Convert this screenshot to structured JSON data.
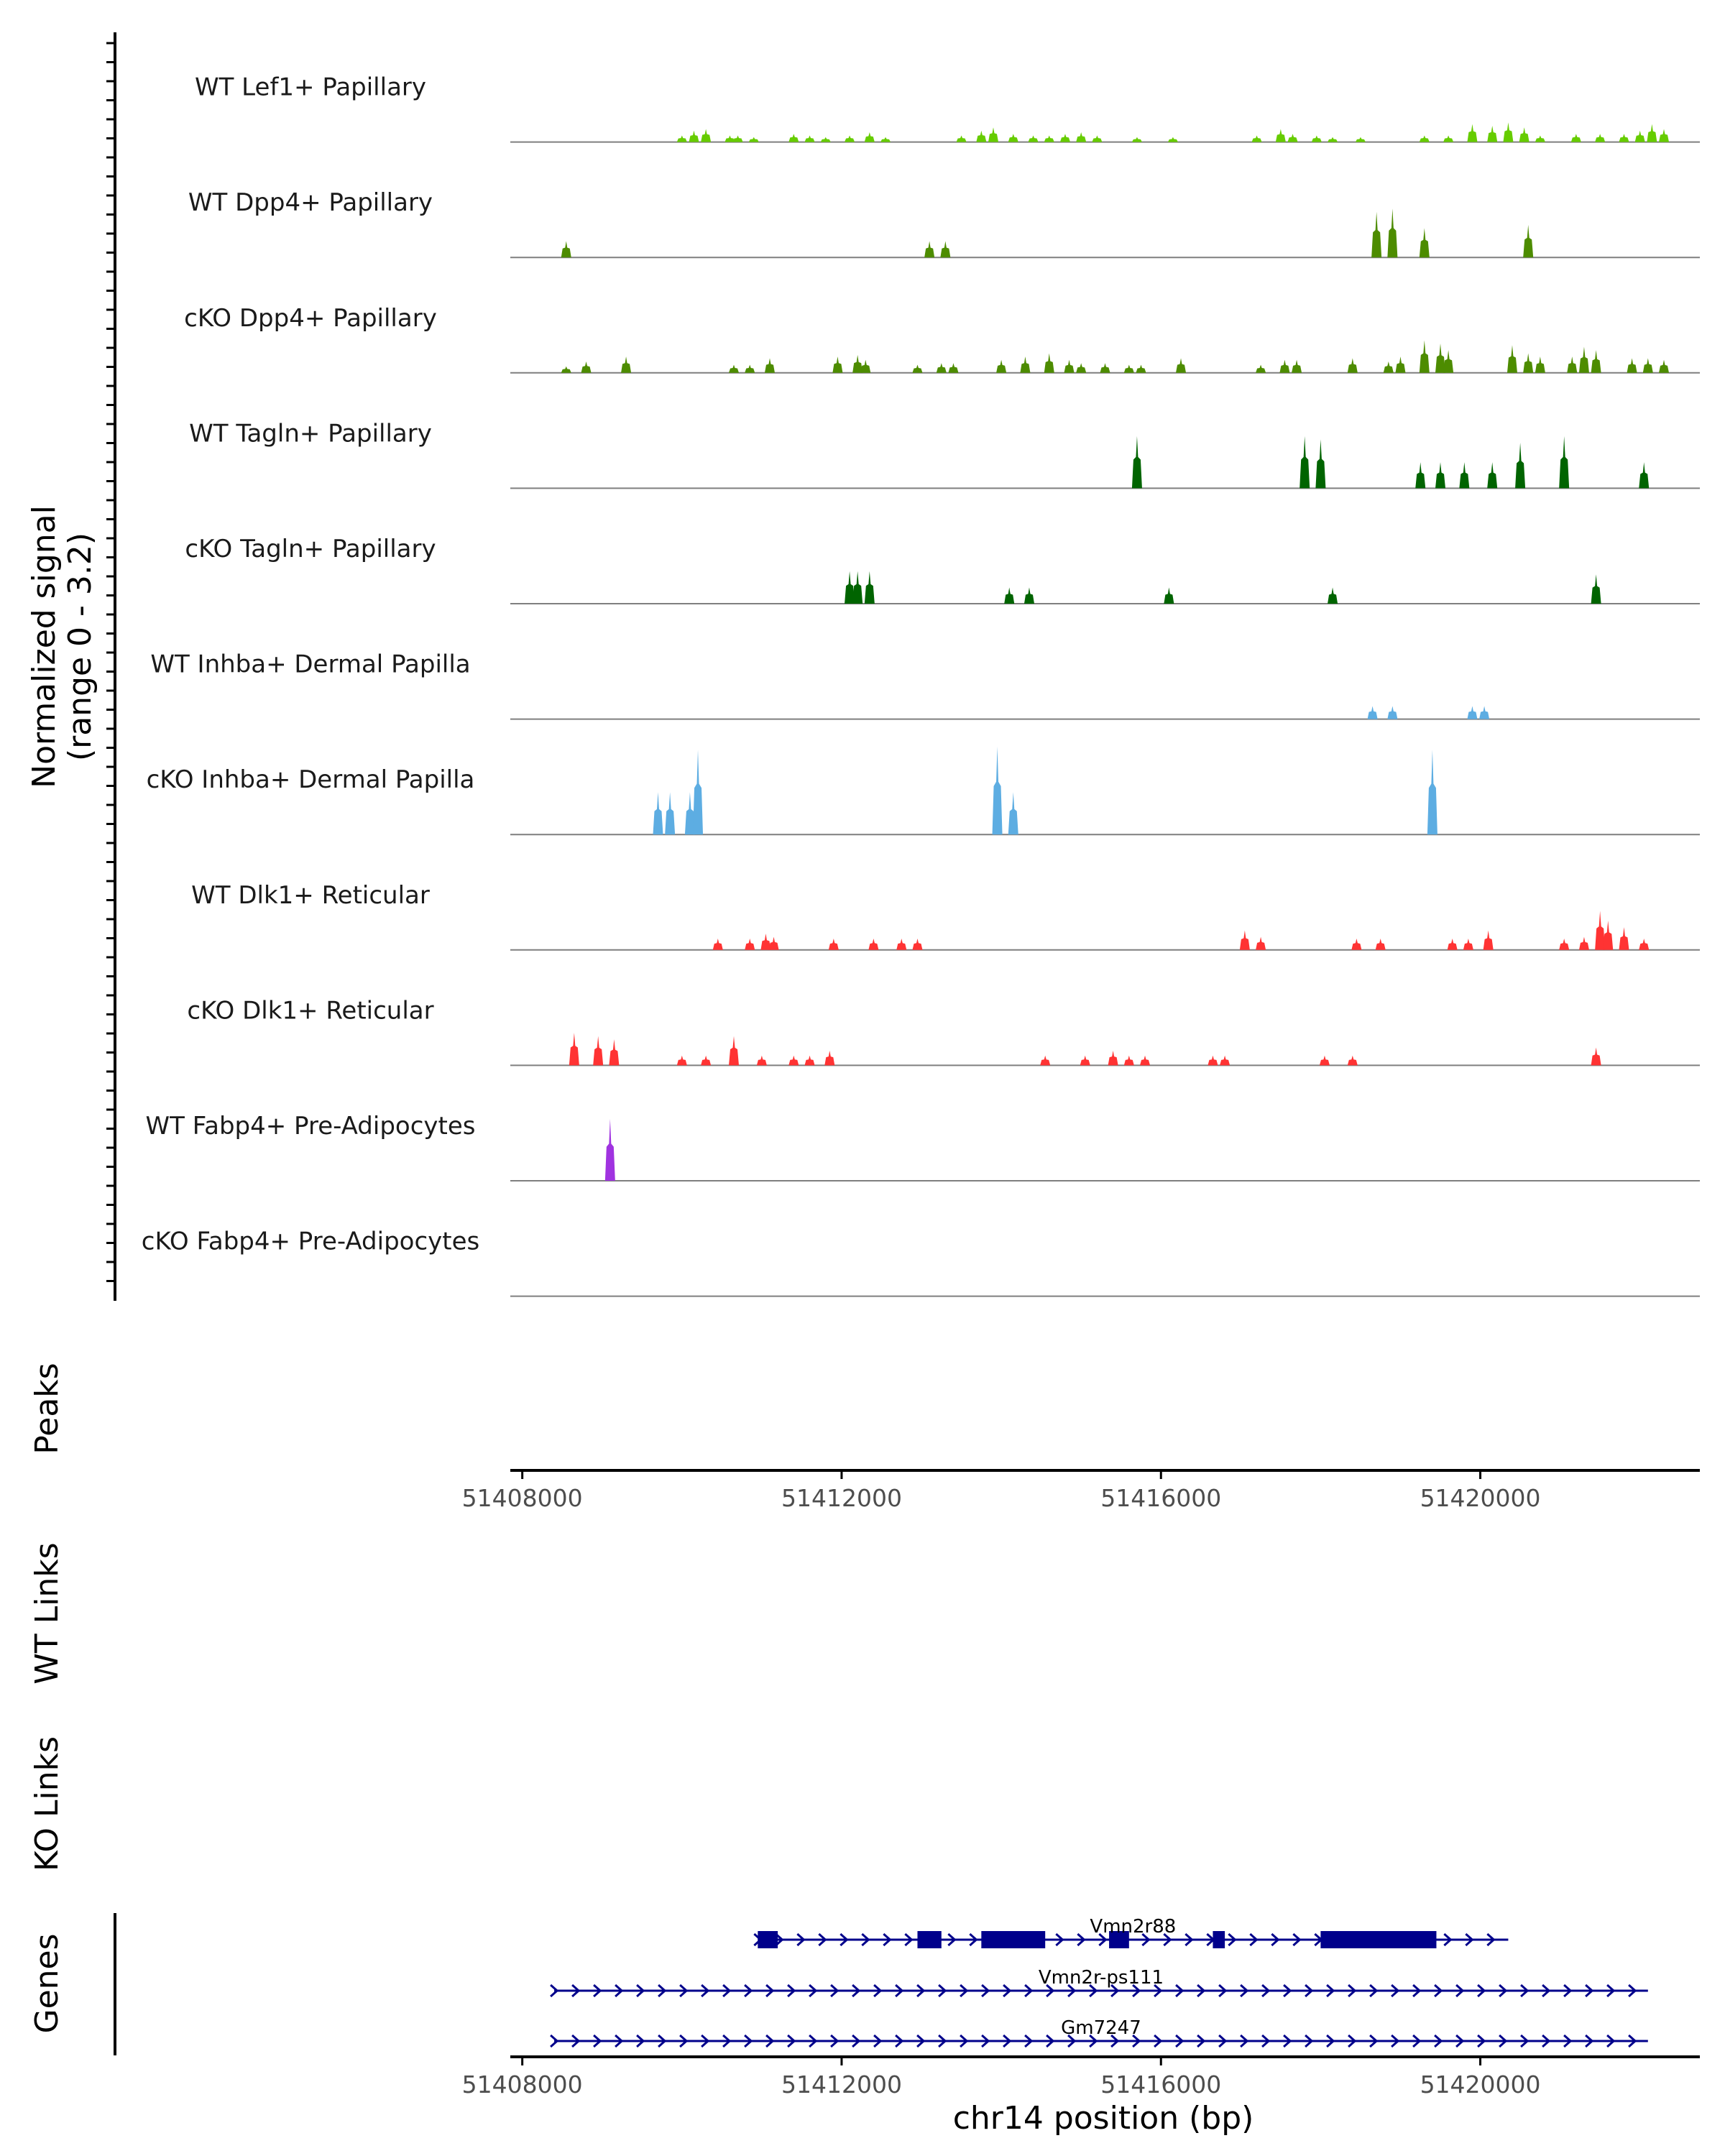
{
  "chart_data": {
    "type": "area",
    "title": "",
    "ylabel": "Normalized signal",
    "ylabel_range": "(range 0 - 3.2)",
    "ylim": [
      0,
      3.2
    ],
    "xlabel": "chr14 position (bp)",
    "xlim": [
      51407850,
      51422750
    ],
    "xticks": [
      51408000,
      51412000,
      51416000,
      51420000
    ],
    "xtick_labels": [
      "51408000",
      "51412000",
      "51416000",
      "51420000"
    ],
    "tracks": [
      {
        "name": "WT Lef1+ Papillary",
        "color": "#66CC00",
        "peaks": [
          [
            51410000,
            0.2
          ],
          [
            51410150,
            0.35
          ],
          [
            51410300,
            0.4
          ],
          [
            51410600,
            0.2
          ],
          [
            51410700,
            0.2
          ],
          [
            51410900,
            0.15
          ],
          [
            51411400,
            0.25
          ],
          [
            51411600,
            0.2
          ],
          [
            51411800,
            0.15
          ],
          [
            51412100,
            0.2
          ],
          [
            51412350,
            0.3
          ],
          [
            51412550,
            0.15
          ],
          [
            51413500,
            0.2
          ],
          [
            51413750,
            0.35
          ],
          [
            51413900,
            0.45
          ],
          [
            51414150,
            0.25
          ],
          [
            51414400,
            0.2
          ],
          [
            51414600,
            0.2
          ],
          [
            51414800,
            0.25
          ],
          [
            51415000,
            0.3
          ],
          [
            51415200,
            0.2
          ],
          [
            51415700,
            0.15
          ],
          [
            51416150,
            0.15
          ],
          [
            51417200,
            0.2
          ],
          [
            51417500,
            0.4
          ],
          [
            51417650,
            0.25
          ],
          [
            51417950,
            0.2
          ],
          [
            51418150,
            0.15
          ],
          [
            51418500,
            0.15
          ],
          [
            51419300,
            0.2
          ],
          [
            51419600,
            0.2
          ],
          [
            51419900,
            0.55
          ],
          [
            51420150,
            0.5
          ],
          [
            51420350,
            0.6
          ],
          [
            51420550,
            0.45
          ],
          [
            51420750,
            0.2
          ],
          [
            51421200,
            0.25
          ],
          [
            51421500,
            0.25
          ],
          [
            51421800,
            0.25
          ],
          [
            51422000,
            0.35
          ],
          [
            51422150,
            0.55
          ],
          [
            51422300,
            0.4
          ]
        ]
      },
      {
        "name": "WT Dpp4+ Papillary",
        "color": "#4D8C00",
        "peaks": [
          [
            51408550,
            0.5
          ],
          [
            51413100,
            0.5
          ],
          [
            51413300,
            0.5
          ],
          [
            51418700,
            1.4
          ],
          [
            51418900,
            1.5
          ],
          [
            51419300,
            0.9
          ],
          [
            51420600,
            1.0
          ]
        ]
      },
      {
        "name": "cKO Dpp4+ Papillary",
        "color": "#4D8C00",
        "peaks": [
          [
            51408550,
            0.2
          ],
          [
            51408800,
            0.35
          ],
          [
            51409300,
            0.5
          ],
          [
            51410650,
            0.25
          ],
          [
            51410850,
            0.25
          ],
          [
            51411100,
            0.45
          ],
          [
            51411950,
            0.5
          ],
          [
            51412200,
            0.55
          ],
          [
            51412300,
            0.4
          ],
          [
            51412950,
            0.25
          ],
          [
            51413250,
            0.3
          ],
          [
            51413400,
            0.3
          ],
          [
            51414000,
            0.4
          ],
          [
            51414300,
            0.5
          ],
          [
            51414600,
            0.6
          ],
          [
            51414850,
            0.4
          ],
          [
            51415000,
            0.3
          ],
          [
            51415300,
            0.3
          ],
          [
            51415600,
            0.25
          ],
          [
            51415750,
            0.25
          ],
          [
            51416250,
            0.45
          ],
          [
            51417250,
            0.25
          ],
          [
            51417550,
            0.4
          ],
          [
            51417700,
            0.4
          ],
          [
            51418400,
            0.45
          ],
          [
            51418850,
            0.35
          ],
          [
            51419000,
            0.5
          ],
          [
            51419300,
            1.0
          ],
          [
            51419500,
            0.9
          ],
          [
            51419600,
            0.7
          ],
          [
            51420400,
            0.85
          ],
          [
            51420600,
            0.6
          ],
          [
            51420750,
            0.5
          ],
          [
            51421150,
            0.5
          ],
          [
            51421300,
            0.8
          ],
          [
            51421450,
            0.7
          ],
          [
            51421900,
            0.45
          ],
          [
            51422100,
            0.45
          ],
          [
            51422300,
            0.4
          ]
        ]
      },
      {
        "name": "WT Tagln+ Papillary",
        "color": "#006400",
        "peaks": [
          [
            51415700,
            1.6
          ],
          [
            51417800,
            1.6
          ],
          [
            51418000,
            1.5
          ],
          [
            51419250,
            0.8
          ],
          [
            51419500,
            0.8
          ],
          [
            51419800,
            0.8
          ],
          [
            51420150,
            0.8
          ],
          [
            51420500,
            1.4
          ],
          [
            51421050,
            1.6
          ],
          [
            51422050,
            0.8
          ]
        ]
      },
      {
        "name": "cKO Tagln+ Papillary",
        "color": "#006400",
        "peaks": [
          [
            51412100,
            1.0
          ],
          [
            51412200,
            1.0
          ],
          [
            51412350,
            1.0
          ],
          [
            51414100,
            0.5
          ],
          [
            51414350,
            0.5
          ],
          [
            51416100,
            0.5
          ],
          [
            51418150,
            0.5
          ],
          [
            51421450,
            0.9
          ]
        ]
      },
      {
        "name": "WT Inhba+ Dermal Papilla",
        "color": "#5DADE2",
        "peaks": [
          [
            51418650,
            0.4
          ],
          [
            51418900,
            0.4
          ],
          [
            51419900,
            0.4
          ],
          [
            51420050,
            0.4
          ]
        ]
      },
      {
        "name": "cKO Inhba+ Dermal Papilla",
        "color": "#5DADE2",
        "peaks": [
          [
            51409700,
            1.3
          ],
          [
            51409850,
            1.3
          ],
          [
            51410100,
            1.3
          ],
          [
            51410200,
            2.6
          ],
          [
            51413950,
            2.7
          ],
          [
            51414150,
            1.3
          ],
          [
            51419400,
            2.6
          ]
        ]
      },
      {
        "name": "WT Dlk1+ Reticular",
        "color": "#FF3333",
        "peaks": [
          [
            51410450,
            0.35
          ],
          [
            51410850,
            0.35
          ],
          [
            51411050,
            0.5
          ],
          [
            51411150,
            0.4
          ],
          [
            51411900,
            0.35
          ],
          [
            51412400,
            0.35
          ],
          [
            51412750,
            0.35
          ],
          [
            51412950,
            0.35
          ],
          [
            51417050,
            0.6
          ],
          [
            51417250,
            0.4
          ],
          [
            51418450,
            0.35
          ],
          [
            51418750,
            0.35
          ],
          [
            51419650,
            0.35
          ],
          [
            51419850,
            0.35
          ],
          [
            51420100,
            0.6
          ],
          [
            51421050,
            0.35
          ],
          [
            51421300,
            0.4
          ],
          [
            51421500,
            1.2
          ],
          [
            51421600,
            0.9
          ],
          [
            51421800,
            0.7
          ],
          [
            51422050,
            0.35
          ]
        ]
      },
      {
        "name": "cKO Dlk1+ Reticular",
        "color": "#FF3333",
        "peaks": [
          [
            51408650,
            1.0
          ],
          [
            51408950,
            0.9
          ],
          [
            51409150,
            0.8
          ],
          [
            51410000,
            0.3
          ],
          [
            51410300,
            0.3
          ],
          [
            51410650,
            0.9
          ],
          [
            51411000,
            0.3
          ],
          [
            51411400,
            0.3
          ],
          [
            51411600,
            0.3
          ],
          [
            51411850,
            0.45
          ],
          [
            51414550,
            0.3
          ],
          [
            51415050,
            0.3
          ],
          [
            51415400,
            0.45
          ],
          [
            51415600,
            0.3
          ],
          [
            51415800,
            0.3
          ],
          [
            51416650,
            0.3
          ],
          [
            51416800,
            0.3
          ],
          [
            51418050,
            0.3
          ],
          [
            51418400,
            0.3
          ],
          [
            51421450,
            0.55
          ]
        ]
      },
      {
        "name": "WT Fabp4+ Pre-Adipocytes",
        "color": "#A033E0",
        "peaks": [
          [
            51409100,
            1.9
          ]
        ]
      },
      {
        "name": "cKO Fabp4+ Pre-Adipocytes",
        "color": "#A033E0",
        "peaks": []
      }
    ],
    "panels": [
      "Peaks",
      "WT Links",
      "KO Links",
      "Genes"
    ],
    "genes": [
      {
        "name": "Vmn2r88",
        "start": 51410950,
        "end": 51420350,
        "exons": [
          [
            51410950,
            51411200
          ],
          [
            51412950,
            51413250
          ],
          [
            51413750,
            51414550
          ],
          [
            51415350,
            51415600
          ],
          [
            51416650,
            51416800
          ],
          [
            51418000,
            51419450
          ]
        ]
      },
      {
        "name": "Vmn2r-ps111",
        "start": 51408400,
        "end": 51422100,
        "exons": []
      },
      {
        "name": "Gm7247",
        "start": 51408400,
        "end": 51422100,
        "exons": []
      }
    ],
    "gene_color": "#00008B"
  }
}
